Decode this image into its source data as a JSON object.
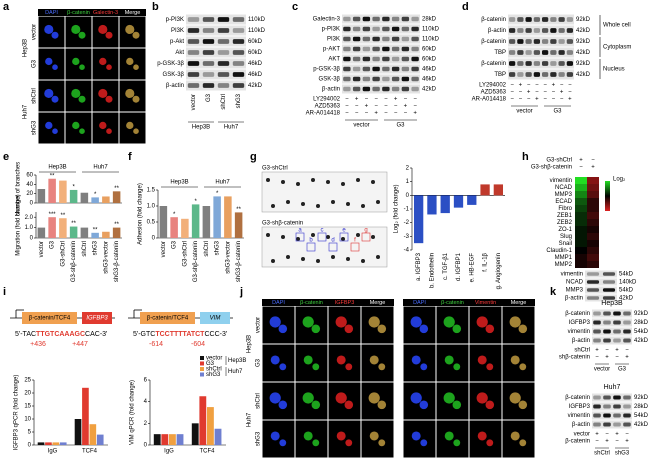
{
  "figure": {
    "panel_labels": [
      "a",
      "b",
      "c",
      "d",
      "e",
      "f",
      "g",
      "h",
      "i",
      "j",
      "k"
    ],
    "a": {
      "headers": [
        "DAPI",
        "β-catenin",
        "Galectin-3",
        "Merge"
      ],
      "groups": [
        {
          "name": "Hep3B",
          "rows": [
            "vector",
            "G3"
          ]
        },
        {
          "name": "Huh7",
          "rows": [
            "shCtrl",
            "shG3"
          ]
        }
      ]
    },
    "b": {
      "rows": [
        "p-PI3K",
        "PI3K",
        "p-Akt",
        "Akt",
        "p-GSK-3β",
        "GSK-3β",
        "β-actin"
      ],
      "kd": [
        "110kD",
        "110kD",
        "60kD",
        "60kD",
        "46kD",
        "46kD",
        "42kD"
      ],
      "lanes": [
        "vector",
        "G3",
        "shCtrl",
        "shG3"
      ],
      "cells": [
        "Hep3B",
        "Huh7"
      ]
    },
    "c": {
      "rows": [
        "Galectin-3",
        "p-PI3K",
        "PI3K",
        "p-AKT",
        "AKT",
        "p-GSK-3β",
        "GSK-3β",
        "β-actin"
      ],
      "kd": [
        "28kD",
        "110kD",
        "110kD",
        "60kD",
        "60kD",
        "46kD",
        "46kD",
        "42kD"
      ],
      "treatments": [
        {
          "name": "LY294002",
          "signs": [
            "−",
            "+",
            "−",
            "−",
            "−",
            "+",
            "−",
            "−"
          ]
        },
        {
          "name": "AZD5363",
          "signs": [
            "−",
            "−",
            "+",
            "−",
            "−",
            "−",
            "+",
            "−"
          ]
        },
        {
          "name": "AR-A014418",
          "signs": [
            "−",
            "−",
            "−",
            "+",
            "−",
            "−",
            "−",
            "+"
          ]
        }
      ],
      "groups": [
        "vector",
        "G3"
      ]
    },
    "d": {
      "rows": [
        "β-catenin",
        "β-actin",
        "β-catenin",
        "TBP",
        "β-catenin",
        "TBP"
      ],
      "kd": [
        "92kD",
        "42kD",
        "92kD",
        "42kD",
        "92kD",
        "42kD"
      ],
      "fractions": [
        "Whole cell",
        "Cytoplasm",
        "Nucleus"
      ],
      "treatments": [
        {
          "name": "LY294002",
          "signs": [
            "−",
            "+",
            "−",
            "−",
            "−",
            "+",
            "−",
            "−"
          ]
        },
        {
          "name": "AZD5363",
          "signs": [
            "−",
            "−",
            "+",
            "−",
            "−",
            "−",
            "+",
            "−"
          ]
        },
        {
          "name": "AR-A014418",
          "signs": [
            "−",
            "−",
            "−",
            "+",
            "−",
            "−",
            "−",
            "+"
          ]
        }
      ],
      "groups": [
        "vector",
        "G3"
      ]
    },
    "g": {
      "blots": [
        "G3-shCtrl",
        "G3-shβ-catenin"
      ],
      "spot_labels": [
        "a",
        "b",
        "c",
        "d",
        "e",
        "f",
        "g"
      ]
    },
    "h": {
      "conditions": [
        {
          "name": "G3-shCtrl",
          "signs": [
            "+",
            "−"
          ]
        },
        {
          "name": "G3-shβ-catenin",
          "signs": [
            "−",
            "+"
          ]
        }
      ],
      "genes": [
        "vimentin",
        "NCAD",
        "MMP3",
        "ECAD",
        "Fibro",
        "ZEB1",
        "ZEB2",
        "ZO-1",
        "Slug",
        "Snail",
        "Claudin-1",
        "MMP1",
        "MMP2"
      ],
      "heat": [
        [
          1,
          -0.6
        ],
        [
          0.8,
          -0.5
        ],
        [
          0.6,
          -0.4
        ],
        [
          0.4,
          -0.2
        ],
        [
          0.3,
          -0.2
        ],
        [
          0.2,
          -0.3
        ],
        [
          0.2,
          -0.2
        ],
        [
          0.1,
          -0.1
        ],
        [
          0.1,
          -0.2
        ],
        [
          0.1,
          -0.1
        ],
        [
          0,
          -0.2
        ],
        [
          -0.1,
          -0.3
        ],
        [
          -0.1,
          -0.2
        ]
      ],
      "heat_colors": {
        "high": "#22dd22",
        "low": "#dd2222"
      },
      "legend_title": "Log₂",
      "rows": [
        "vimentin",
        "NCAD",
        "MMP3",
        "β-actin"
      ],
      "kd": [
        "54kD",
        "140kD",
        "54kD",
        "42kD"
      ]
    },
    "i": {
      "promoters": [
        {
          "factor": "β-catenin/TCF4",
          "gene": "IGFBP3",
          "seq_start": "5'-TAC",
          "seq_site": "TTGTCAAAGC",
          "seq_end": "CAC-3'",
          "pos": [
            "+436",
            "+447"
          ]
        },
        {
          "factor": "β-catenin/TCF4",
          "gene": "VIM",
          "seq_start": "5'-GTC",
          "seq_site": "TCCTTTTATCT",
          "seq_end": "CCC-3'",
          "pos": [
            "-614",
            "-604"
          ]
        }
      ]
    },
    "j": {
      "blocks": [
        {
          "headers": [
            "DAPI",
            "β-catenin",
            "IGFBP3",
            "Merge"
          ]
        },
        {
          "headers": [
            "DAPI",
            "β-catenin",
            "Vimentin",
            "Merge"
          ]
        }
      ],
      "groups": [
        {
          "name": "Hep3B",
          "rows": [
            "vector",
            "G3"
          ]
        },
        {
          "name": "Huh7",
          "rows": [
            "shCtrl",
            "shG3"
          ]
        }
      ]
    },
    "k": {
      "blots": [
        {
          "title": "Hep3B",
          "rows": [
            "β-catenin",
            "IGFBP3",
            "vimentin",
            "β-actin"
          ],
          "kd": [
            "92kD",
            "28kD",
            "54kD",
            "42kD"
          ],
          "treatments": [
            {
              "name": "shCtrl",
              "signs": [
                "+",
                "−",
                "+",
                "−"
              ]
            },
            {
              "name": "shβ-catenin",
              "signs": [
                "−",
                "+",
                "−",
                "+"
              ]
            }
          ],
          "groups": [
            "vector",
            "G3"
          ]
        },
        {
          "title": "Huh7",
          "rows": [
            "β-catenin",
            "IGFBP3",
            "vimentin",
            "β-actin"
          ],
          "kd": [
            "92kD",
            "28kD",
            "54kD",
            "42kD"
          ],
          "treatments": [
            {
              "name": "vector",
              "signs": [
                "+",
                "−",
                "+",
                "−"
              ]
            },
            {
              "name": "β-catenin",
              "signs": [
                "−",
                "+",
                "−",
                "+"
              ]
            }
          ],
          "groups": [
            "shCtrl",
            "shG3"
          ]
        }
      ]
    }
  },
  "chart_data": [
    {
      "type": "bar",
      "ylabel": "Number of branches",
      "groups": [
        "Hep3B",
        "Huh7"
      ],
      "values": [
        30,
        52,
        48,
        28,
        22,
        12,
        14,
        25
      ],
      "colors": [
        "#7f7f7f",
        "#e8837f",
        "#f2b07a",
        "#5cb88a",
        "#7f7f7f",
        "#7fa8d8",
        "#e8a060",
        "#b07040"
      ],
      "significance": [
        null,
        "**",
        null,
        "*",
        null,
        "*",
        null,
        "**"
      ],
      "ylim": [
        0,
        60
      ],
      "yticks": [
        0,
        20,
        40,
        60
      ]
    },
    {
      "type": "bar",
      "ylabel": "Migration (fold change)",
      "categories": [
        "vector",
        "G3",
        "G3-shCtrl",
        "G3-shβ-catenin",
        "shCtrl",
        "shG3",
        "shG3-vector",
        "shG3-β-catenin"
      ],
      "values": [
        1,
        2,
        1.9,
        1.1,
        1,
        0.5,
        0.6,
        1
      ],
      "colors": [
        "#7f7f7f",
        "#e8837f",
        "#f2b07a",
        "#5cb88a",
        "#7f7f7f",
        "#7fa8d8",
        "#e8a060",
        "#b07040"
      ],
      "significance": [
        null,
        "***",
        "**",
        "**",
        null,
        "**",
        null,
        "**"
      ],
      "ylim": [
        0,
        2.5
      ],
      "yticks": [
        0,
        {
          "value": 1,
          "label": "1.0"
        },
        {
          "value": 2,
          "label": "2.0"
        }
      ]
    },
    {
      "type": "bar",
      "ylabel": "Adhesion (fold change)",
      "groups": [
        "Hep3B",
        "Huh7"
      ],
      "categories": [
        "vector",
        "G3",
        "G3-shCtrl",
        "G3-shβ-catenin",
        "shCtrl",
        "shG3",
        "shG3-vector",
        "shG3-β-catenin"
      ],
      "values": [
        1,
        0.65,
        0.6,
        1.05,
        1,
        1.3,
        1.3,
        0.8
      ],
      "colors": [
        "#7f7f7f",
        "#e8837f",
        "#f2b07a",
        "#5cb88a",
        "#7f7f7f",
        "#7fa8d8",
        "#e8a060",
        "#b07040"
      ],
      "significance": [
        null,
        "*",
        null,
        "*",
        null,
        "*",
        null,
        "**"
      ],
      "ylim": [
        0,
        1.5
      ],
      "yticks": [
        0,
        0.5,
        {
          "value": 1,
          "label": "1.0"
        },
        1.5
      ]
    },
    {
      "type": "bar",
      "ylabel": "Log₂ (fold change)",
      "categories": [
        "a. IGFBP3",
        "b. Endothelin",
        "c. TGF-β1",
        "d. IGFBP1",
        "e. HB-EGF",
        "f. IL-1β",
        "g. Angiogenin"
      ],
      "values": [
        -3.5,
        -1.4,
        -1.3,
        -0.9,
        -0.7,
        0.8,
        0.8
      ],
      "colors": [
        "#2b4fc4",
        "#2b4fc4",
        "#2b4fc4",
        "#2b4fc4",
        "#2b4fc4",
        "#c0392b",
        "#c0392b"
      ],
      "ylim": [
        -4,
        2
      ],
      "yticks": [
        -4,
        -3,
        -2,
        -1,
        0,
        1,
        2
      ]
    },
    {
      "type": "grouped_bar",
      "ylabel": "IGFBP3 qPCR (fold change)",
      "categories": [
        "IgG",
        "TCF4"
      ],
      "series": [
        {
          "color": "#111111",
          "values": [
            1,
            10
          ]
        },
        {
          "color": "#e03a2f",
          "values": [
            1,
            22
          ]
        },
        {
          "color": "#f0a040",
          "values": [
            1,
            8
          ]
        },
        {
          "color": "#6f7fd0",
          "values": [
            1,
            4
          ]
        }
      ],
      "ylim": [
        0,
        25
      ],
      "yticks": [
        0,
        5,
        10,
        15,
        20,
        25
      ]
    },
    {
      "type": "grouped_bar",
      "ylabel": "VIM qPCR (fold change)",
      "categories": [
        "IgG",
        "TCF4"
      ],
      "series": [
        {
          "name": "vector",
          "color": "#111111",
          "values": [
            1,
            2
          ]
        },
        {
          "name": "G3",
          "color": "#e03a2f",
          "values": [
            1,
            4.5
          ]
        },
        {
          "name": "shCtrl",
          "color": "#f0a040",
          "values": [
            1,
            3.5
          ]
        },
        {
          "name": "shG3",
          "color": "#6f7fd0",
          "values": [
            1,
            1.5
          ]
        }
      ],
      "legend_groups": [
        "Hep3B",
        "Huh7"
      ],
      "ylim": [
        0,
        6
      ],
      "yticks": [
        0,
        2,
        4,
        6
      ]
    }
  ]
}
